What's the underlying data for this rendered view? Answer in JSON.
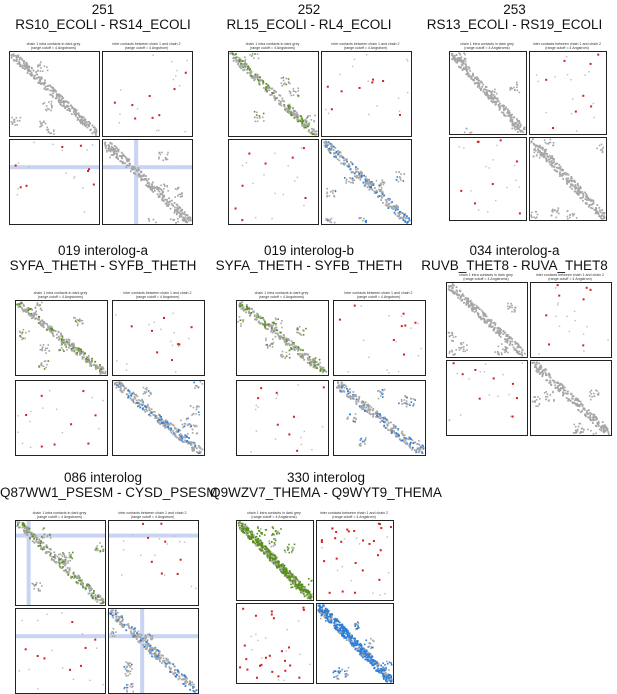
{
  "header_text": {
    "left": "chain 1 intra contacts in dark grey",
    "left_sub": "(range cutoff = 4 Angstroms)",
    "right": "inter contacts between chain 1 and chain 2",
    "right_sub": "(range cutoff = 4 Angstrom)"
  },
  "panels": [
    {
      "id": "251",
      "line1": "251",
      "line2": "RS10_ECOLI - RS14_ECOLI"
    },
    {
      "id": "252",
      "line1": "252",
      "line2": "RL15_ECOLI - RL4_ECOLI"
    },
    {
      "id": "253",
      "line1": "253",
      "line2": "RS13_ECOLI - RS19_ECOLI"
    },
    {
      "id": "019a",
      "line1": "019 interolog-a",
      "line2": "SYFA_THETH - SYFB_THETH"
    },
    {
      "id": "019b",
      "line1": "019 interolog-b",
      "line2": "SYFA_THETH - SYFB_THETH"
    },
    {
      "id": "034a",
      "line1": "034 interolog-a",
      "line2": "RUVB_THET8 - RUVA_THET8"
    },
    {
      "id": "086",
      "line1": "086 interolog",
      "line2": "Q87WW1_PSESM - CYSD_PSESM"
    },
    {
      "id": "330",
      "line1": "330 interolog",
      "line2": "Q9WZV7_THEMA - Q9WYT9_THEMA"
    }
  ],
  "colors": {
    "intra": "#a6a6a6",
    "chain1": "#5a8f1e",
    "chain2": "#2f7fd8",
    "inter": "#d32020",
    "highlight": "#c9d4f2"
  }
}
